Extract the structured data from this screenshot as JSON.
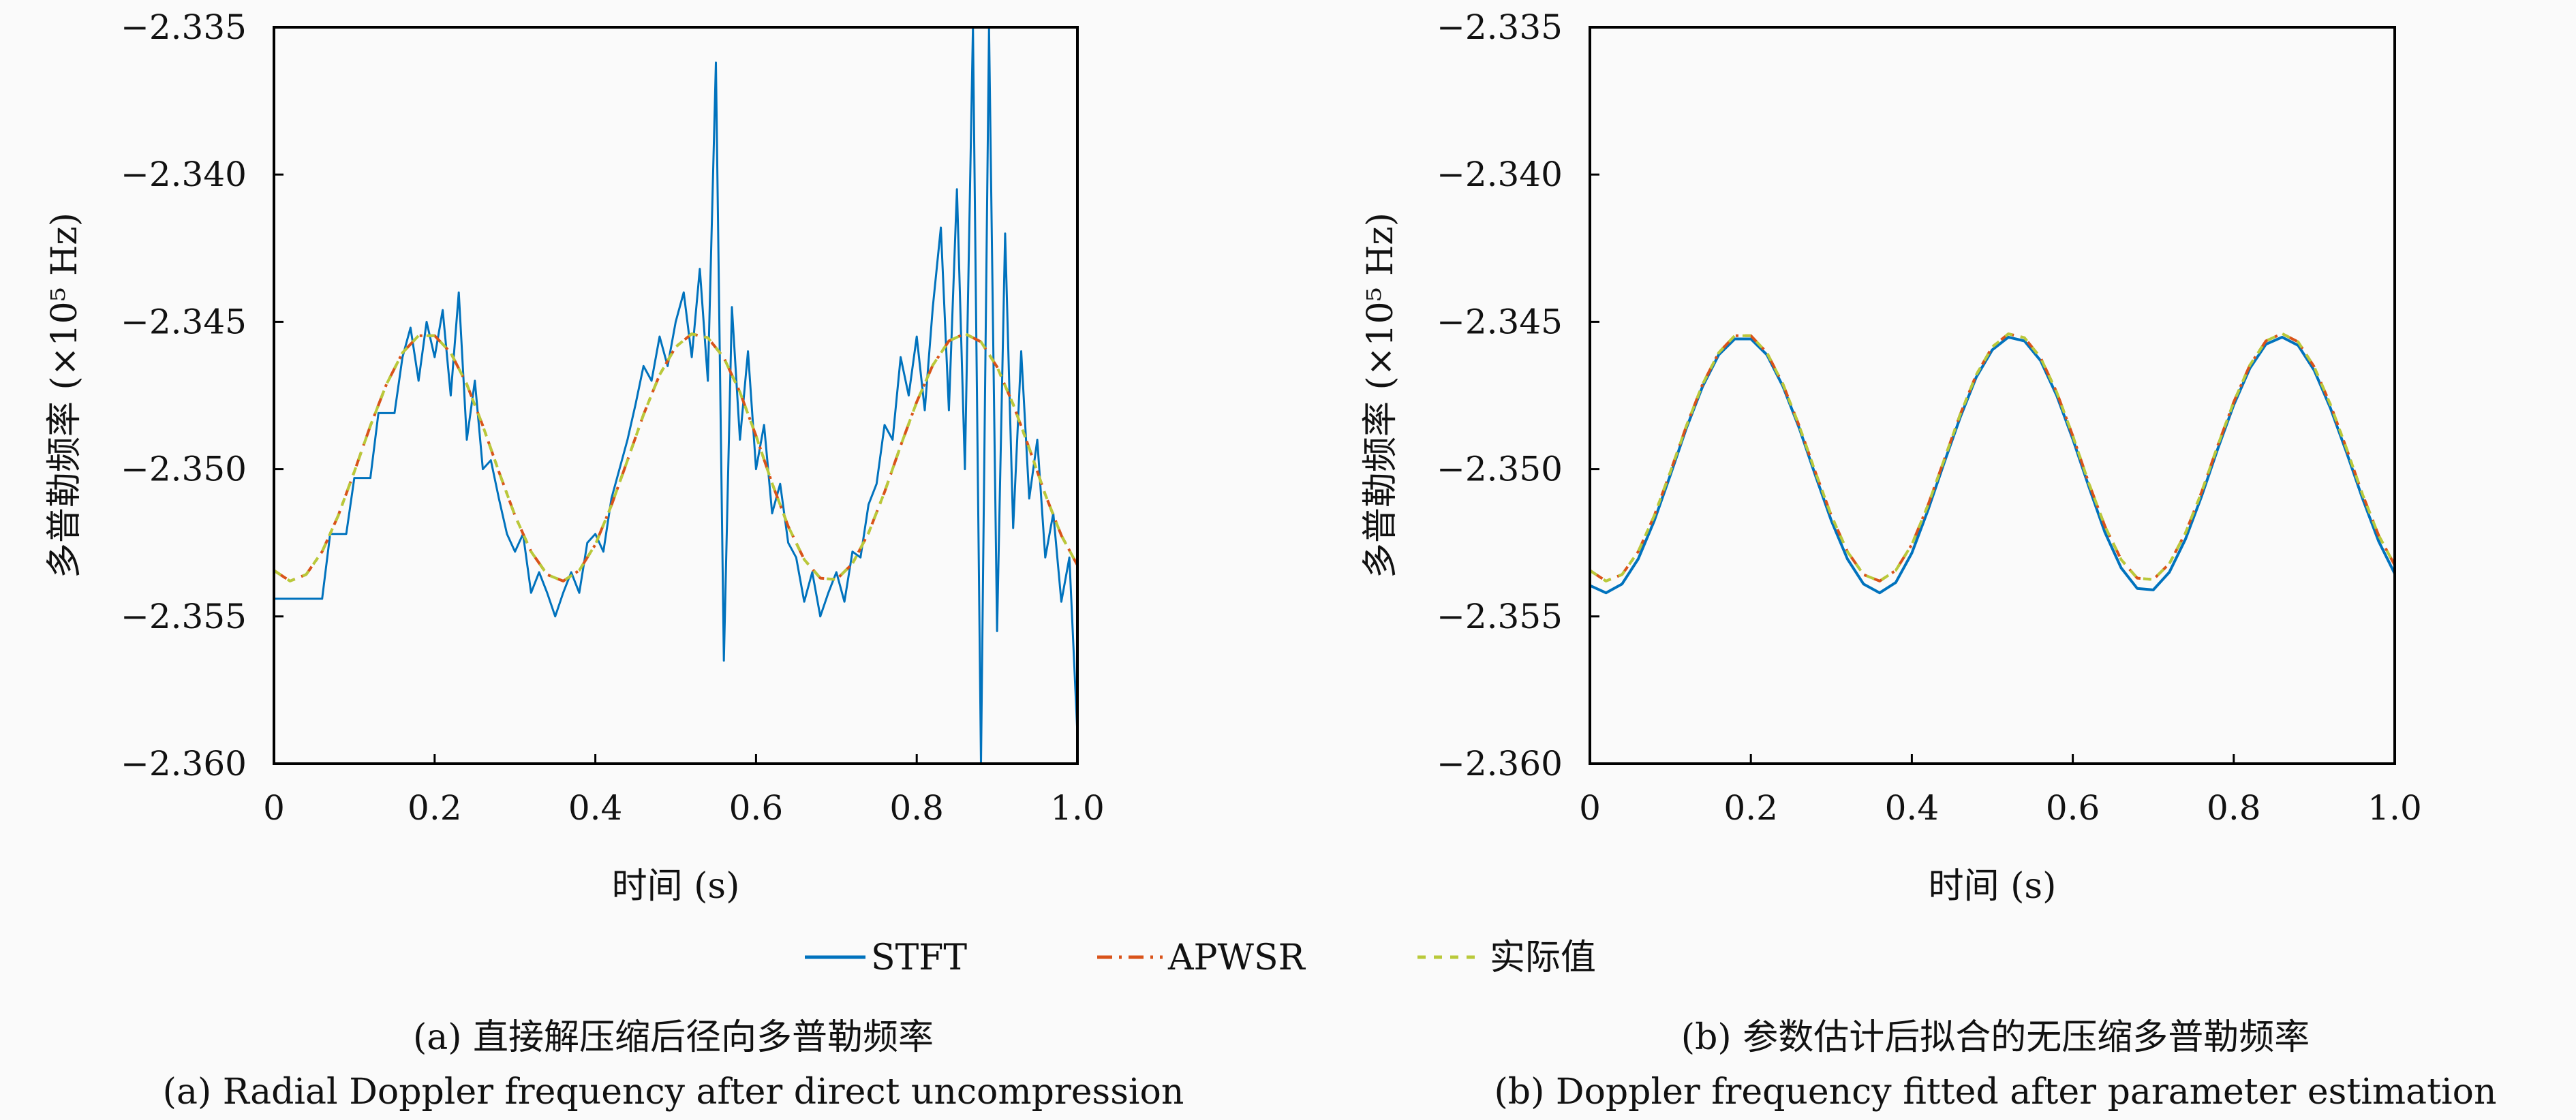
{
  "legend": {
    "placement": "bottom-center",
    "items": [
      {
        "label": "STFT",
        "color": "#0072BD",
        "style": "solid"
      },
      {
        "label": "APWSR",
        "color": "#D95319",
        "style": "dash-dot"
      },
      {
        "label": "实际值",
        "color": "#B9C93A",
        "style": "dashed"
      }
    ]
  },
  "captions": {
    "a_cn": "(a) 直接解压缩后径向多普勒频率",
    "a_en": "(a) Radial Doppler frequency after direct uncompression",
    "b_cn": "(b) 参数估计后拟合的无压缩多普勒频率",
    "b_en": "(b) Doppler frequency fitted after parameter estimation"
  },
  "chart_data": [
    {
      "type": "line",
      "xlabel": "时间 (s)",
      "ylabel": "多普勒频率 (×10⁵ Hz)",
      "xlim": [
        0,
        1.0
      ],
      "ylim": [
        -2.36,
        -2.335
      ],
      "xticks": [
        "0",
        "0.2",
        "0.4",
        "0.6",
        "0.8",
        "1.0"
      ],
      "yticks": [
        "−2.335",
        "−2.340",
        "−2.345",
        "−2.350",
        "−2.355",
        "−2.360"
      ],
      "grid": false,
      "series": [
        {
          "name": "STFT",
          "x_step": 0.01,
          "values": [
            -2.3544,
            -2.3544,
            -2.3544,
            -2.3544,
            -2.3544,
            -2.3544,
            -2.3544,
            -2.3522,
            -2.3522,
            -2.3522,
            -2.3503,
            -2.3503,
            -2.3503,
            -2.3481,
            -2.3481,
            -2.3481,
            -2.3462,
            -2.3452,
            -2.347,
            -2.345,
            -2.3462,
            -2.3446,
            -2.3475,
            -2.344,
            -2.349,
            -2.347,
            -2.35,
            -2.3497,
            -2.351,
            -2.3522,
            -2.3528,
            -2.3522,
            -2.3542,
            -2.3535,
            -2.3542,
            -2.355,
            -2.3542,
            -2.3535,
            -2.3542,
            -2.3525,
            -2.3522,
            -2.3528,
            -2.351,
            -2.35,
            -2.349,
            -2.3478,
            -2.3465,
            -2.347,
            -2.3455,
            -2.3465,
            -2.345,
            -2.344,
            -2.3462,
            -2.3432,
            -2.347,
            -2.3362,
            -2.3565,
            -2.3445,
            -2.349,
            -2.346,
            -2.35,
            -2.3485,
            -2.3515,
            -2.3505,
            -2.3525,
            -2.353,
            -2.3545,
            -2.3535,
            -2.355,
            -2.3542,
            -2.3535,
            -2.3545,
            -2.3528,
            -2.353,
            -2.3512,
            -2.3505,
            -2.3485,
            -2.349,
            -2.3462,
            -2.3475,
            -2.3455,
            -2.348,
            -2.3445,
            -2.3418,
            -2.348,
            -2.3405,
            -2.35,
            -2.335,
            -2.36,
            -2.335,
            -2.3555,
            -2.342,
            -2.352,
            -2.346,
            -2.351,
            -2.349,
            -2.353,
            -2.3515,
            -2.3545,
            -2.353,
            -2.359
          ]
        },
        {
          "name": "APWSR",
          "x_step": 0.02,
          "values": [
            -2.35344,
            -2.3538,
            -2.35358,
            -2.3528,
            -2.35158,
            -2.35009,
            -2.34853,
            -2.34712,
            -2.34605,
            -2.34547,
            -2.34547,
            -2.34605,
            -2.34712,
            -2.34853,
            -2.35009,
            -2.35158,
            -2.3528,
            -2.35358,
            -2.3538,
            -2.35344,
            -2.35256,
            -2.35123,
            -2.3497,
            -2.34815,
            -2.3468,
            -2.34585,
            -2.34541,
            -2.34554,
            -2.34622,
            -2.34739,
            -2.34887,
            -2.35048,
            -2.35194,
            -2.35307,
            -2.3537,
            -2.35375,
            -2.35321,
            -2.35217,
            -2.35078,
            -2.34921,
            -2.34772,
            -2.34647,
            -2.34565,
            -2.3454,
            -2.34568,
            -2.34653,
            -2.3478,
            -2.34929,
            -2.35086,
            -2.35225,
            -2.35326
          ]
        },
        {
          "name": "实际值",
          "x_step": 0.02,
          "values": [
            -2.35344,
            -2.3538,
            -2.35358,
            -2.3528,
            -2.35158,
            -2.35009,
            -2.34853,
            -2.34712,
            -2.34605,
            -2.34547,
            -2.34547,
            -2.34605,
            -2.34712,
            -2.34853,
            -2.35009,
            -2.35158,
            -2.3528,
            -2.35358,
            -2.3538,
            -2.35344,
            -2.35256,
            -2.35123,
            -2.3497,
            -2.34815,
            -2.3468,
            -2.34585,
            -2.34541,
            -2.34554,
            -2.34622,
            -2.34739,
            -2.34887,
            -2.35048,
            -2.35194,
            -2.35307,
            -2.3537,
            -2.35375,
            -2.35321,
            -2.35217,
            -2.35078,
            -2.34921,
            -2.34772,
            -2.34647,
            -2.34565,
            -2.3454,
            -2.34568,
            -2.34653,
            -2.3478,
            -2.34929,
            -2.35086,
            -2.35225,
            -2.35326
          ]
        }
      ]
    },
    {
      "type": "line",
      "xlabel": "时间 (s)",
      "ylabel": "多普勒频率 (×10⁵ Hz)",
      "xlim": [
        0,
        1.0
      ],
      "ylim": [
        -2.36,
        -2.335
      ],
      "xticks": [
        "0",
        "0.2",
        "0.4",
        "0.6",
        "0.8",
        "1.0"
      ],
      "yticks": [
        "−2.335",
        "−2.340",
        "−2.345",
        "−2.350",
        "−2.355",
        "−2.360"
      ],
      "grid": false,
      "series": [
        {
          "name": "STFT",
          "x_step": 0.02,
          "values": [
            -2.35395,
            -2.3542,
            -2.3539,
            -2.35305,
            -2.35175,
            -2.3502,
            -2.3486,
            -2.3472,
            -2.34612,
            -2.34558,
            -2.34558,
            -2.34612,
            -2.3472,
            -2.3486,
            -2.3502,
            -2.35175,
            -2.35305,
            -2.3539,
            -2.3542,
            -2.35385,
            -2.35285,
            -2.3514,
            -2.3498,
            -2.34825,
            -2.34688,
            -2.34595,
            -2.34552,
            -2.34565,
            -2.34632,
            -2.3475,
            -2.34898,
            -2.3506,
            -2.35215,
            -2.35335,
            -2.35405,
            -2.3541,
            -2.3535,
            -2.35238,
            -2.35092,
            -2.34932,
            -2.34782,
            -2.34658,
            -2.34576,
            -2.34552,
            -2.3458,
            -2.34665,
            -2.34792,
            -2.34942,
            -2.351,
            -2.35245,
            -2.35355
          ]
        },
        {
          "name": "APWSR",
          "x_step": 0.02,
          "values": [
            -2.35344,
            -2.3538,
            -2.35358,
            -2.3528,
            -2.35158,
            -2.35009,
            -2.34853,
            -2.34712,
            -2.34605,
            -2.34547,
            -2.34547,
            -2.34605,
            -2.34712,
            -2.34853,
            -2.35009,
            -2.35158,
            -2.3528,
            -2.35358,
            -2.3538,
            -2.35344,
            -2.35256,
            -2.35123,
            -2.3497,
            -2.34815,
            -2.3468,
            -2.34585,
            -2.34541,
            -2.34554,
            -2.34622,
            -2.34739,
            -2.34887,
            -2.35048,
            -2.35194,
            -2.35307,
            -2.3537,
            -2.35375,
            -2.35321,
            -2.35217,
            -2.35078,
            -2.34921,
            -2.34772,
            -2.34647,
            -2.34565,
            -2.3454,
            -2.34568,
            -2.34653,
            -2.3478,
            -2.34929,
            -2.35086,
            -2.35225,
            -2.35326
          ]
        },
        {
          "name": "实际值",
          "x_step": 0.02,
          "values": [
            -2.35344,
            -2.3538,
            -2.35358,
            -2.3528,
            -2.35158,
            -2.35009,
            -2.34853,
            -2.34712,
            -2.34605,
            -2.34547,
            -2.34547,
            -2.34605,
            -2.34712,
            -2.34853,
            -2.35009,
            -2.35158,
            -2.3528,
            -2.35358,
            -2.3538,
            -2.35344,
            -2.35256,
            -2.35123,
            -2.3497,
            -2.34815,
            -2.3468,
            -2.34585,
            -2.34541,
            -2.34554,
            -2.34622,
            -2.34739,
            -2.34887,
            -2.35048,
            -2.35194,
            -2.35307,
            -2.3537,
            -2.35375,
            -2.35321,
            -2.35217,
            -2.35078,
            -2.34921,
            -2.34772,
            -2.34647,
            -2.34565,
            -2.3454,
            -2.34568,
            -2.34653,
            -2.3478,
            -2.34929,
            -2.35086,
            -2.35225,
            -2.35326
          ]
        }
      ]
    }
  ]
}
